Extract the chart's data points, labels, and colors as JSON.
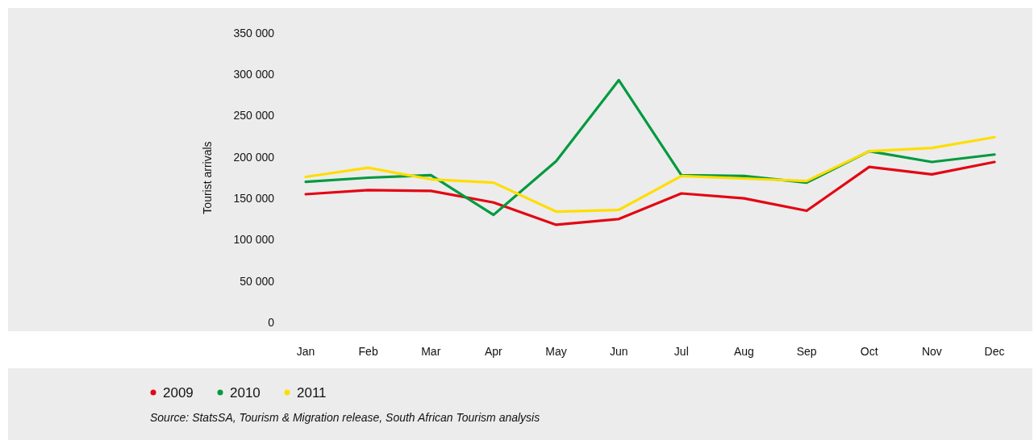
{
  "chart_data": {
    "type": "line",
    "ylabel": "Tourist arrivals",
    "categories": [
      "Jan",
      "Feb",
      "Mar",
      "Apr",
      "May",
      "Jun",
      "Jul",
      "Aug",
      "Sep",
      "Oct",
      "Nov",
      "Dec"
    ],
    "series": [
      {
        "name": "2009",
        "color": "#e30613",
        "values": [
          155000,
          160000,
          159000,
          145000,
          118000,
          125000,
          156000,
          150000,
          135000,
          188000,
          179000,
          194000
        ]
      },
      {
        "name": "2010",
        "color": "#009a3e",
        "values": [
          170000,
          175000,
          178000,
          130000,
          195000,
          293000,
          178000,
          177000,
          169000,
          207000,
          194000,
          203000
        ]
      },
      {
        "name": "2011",
        "color": "#ffdd00",
        "values": [
          176000,
          187000,
          173000,
          169000,
          134000,
          136000,
          177000,
          174000,
          171000,
          207000,
          211000,
          224000
        ]
      }
    ],
    "ylim": [
      0,
      350000
    ],
    "yticks": [
      {
        "value": 0,
        "label": "0"
      },
      {
        "value": 50000,
        "label": "50 000"
      },
      {
        "value": 100000,
        "label": "100 000"
      },
      {
        "value": 150000,
        "label": "150 000"
      },
      {
        "value": 200000,
        "label": "200 000"
      },
      {
        "value": 250000,
        "label": "250 000"
      },
      {
        "value": 300000,
        "label": "300 000"
      },
      {
        "value": 350000,
        "label": "350 000"
      }
    ],
    "legend": "bottom",
    "annotations": [
      "Source: StatsSA, Tourism & Migration release, South African Tourism analysis"
    ]
  }
}
